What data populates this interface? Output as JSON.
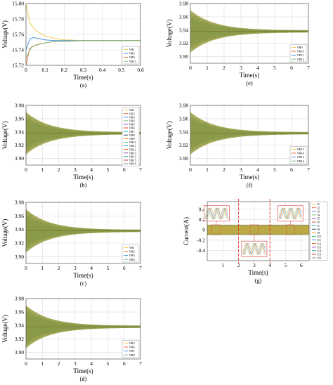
{
  "chart_data": [
    {
      "id": "a",
      "type": "line",
      "caption": "(a)",
      "xlabel": "Time(s)",
      "ylabel": "Voltage(V)",
      "xlim": [
        0,
        0.6
      ],
      "ylim": [
        15.72,
        15.8
      ],
      "xticks": [
        "0",
        "0.1",
        "0.2",
        "0.3",
        "0.4",
        "0.5",
        "0.6"
      ],
      "yticks": [
        "15.72",
        "15.74",
        "15.76",
        "15.78",
        "15.80"
      ],
      "grid": true,
      "legend_position": "bottom-right",
      "envelope": null,
      "series": [
        {
          "name": "VB1",
          "color": "#f2c94c",
          "x": [
            0,
            0.02,
            0.05,
            0.1,
            0.15,
            0.2,
            0.3,
            0.4,
            0.6
          ],
          "y": [
            15.8,
            15.775,
            15.765,
            15.758,
            15.755,
            15.753,
            15.752,
            15.752,
            15.752
          ]
        },
        {
          "name": "VB5",
          "color": "#4a90d9",
          "x": [
            0,
            0.02,
            0.04,
            0.06,
            0.1,
            0.15,
            0.2,
            0.3,
            0.6
          ],
          "y": [
            15.74,
            15.754,
            15.756,
            15.755,
            15.753,
            15.752,
            15.752,
            15.752,
            15.752
          ]
        },
        {
          "name": "VB9",
          "color": "#e8743b",
          "x": [
            0,
            0.02,
            0.05,
            0.1,
            0.15,
            0.2,
            0.3,
            0.6
          ],
          "y": [
            15.72,
            15.742,
            15.746,
            15.749,
            15.751,
            15.751,
            15.752,
            15.752
          ]
        },
        {
          "name": "VB13",
          "color": "#7fbf7f",
          "x": [
            0,
            0.03,
            0.06,
            0.1,
            0.15,
            0.2,
            0.3,
            0.6
          ],
          "y": [
            15.73,
            15.744,
            15.747,
            15.749,
            15.751,
            15.751,
            15.752,
            15.752
          ]
        }
      ]
    },
    {
      "id": "b",
      "type": "line",
      "caption": "(b)",
      "xlabel": "Time(s)",
      "ylabel": "Voltage(V)",
      "xlim": [
        0,
        7
      ],
      "ylim": [
        3.89,
        3.98
      ],
      "xticks": [
        "0",
        "1",
        "2",
        "3",
        "4",
        "5",
        "6",
        "7"
      ],
      "yticks": [
        "3.90",
        "3.92",
        "3.94",
        "3.96",
        "3.98"
      ],
      "grid": true,
      "legend_position": "right",
      "envelope": {
        "center": 3.938,
        "amp_start": 0.032,
        "amp_end": 0.0015,
        "decay": 0.7,
        "color": "#b5aa52"
      },
      "series": [
        {
          "name": "VB1",
          "color": "#f2c94c"
        },
        {
          "name": "VB2",
          "color": "#e8743b"
        },
        {
          "name": "VB3",
          "color": "#4a90d9"
        },
        {
          "name": "VB4",
          "color": "#7fbf7f"
        },
        {
          "name": "VB5",
          "color": "#9b59b6"
        },
        {
          "name": "VB6",
          "color": "#e74c3c"
        },
        {
          "name": "VB7",
          "color": "#1abc9c"
        },
        {
          "name": "VB8",
          "color": "#34495e"
        },
        {
          "name": "VB9",
          "color": "#f39c12"
        },
        {
          "name": "VB10",
          "color": "#2ecc71"
        },
        {
          "name": "VB11",
          "color": "#3498db"
        },
        {
          "name": "VB12",
          "color": "#d35400"
        },
        {
          "name": "VB13",
          "color": "#8e44ad"
        },
        {
          "name": "VB14",
          "color": "#16a085"
        },
        {
          "name": "VB15",
          "color": "#c0392b"
        },
        {
          "name": "VB16",
          "color": "#7f8c8d"
        }
      ]
    },
    {
      "id": "c",
      "type": "line",
      "caption": "(c)",
      "xlabel": "Time(s)",
      "ylabel": "Voltage(V)",
      "xlim": [
        0,
        7
      ],
      "ylim": [
        3.89,
        3.98
      ],
      "xticks": [
        "0",
        "1",
        "2",
        "3",
        "4",
        "5",
        "6",
        "7"
      ],
      "yticks": [
        "3.90",
        "3.92",
        "3.94",
        "3.96",
        "3.98"
      ],
      "grid": true,
      "legend_position": "bottom-right",
      "envelope": {
        "center": 3.938,
        "amp_start": 0.032,
        "amp_end": 0.0015,
        "decay": 0.7,
        "color": "#b5aa52"
      },
      "series": [
        {
          "name": "VB1",
          "color": "#f2c94c"
        },
        {
          "name": "VB2",
          "color": "#e8743b"
        },
        {
          "name": "VB3",
          "color": "#4a90d9"
        },
        {
          "name": "VB4",
          "color": "#7fbf7f"
        }
      ]
    },
    {
      "id": "d",
      "type": "line",
      "caption": "(d)",
      "xlabel": "Time(s)",
      "ylabel": "Voltage(V)",
      "xlim": [
        0,
        7
      ],
      "ylim": [
        3.89,
        3.98
      ],
      "xticks": [
        "0",
        "1",
        "2",
        "3",
        "4",
        "5",
        "6",
        "7"
      ],
      "yticks": [
        "3.90",
        "3.92",
        "3.94",
        "3.96",
        "3.98"
      ],
      "grid": true,
      "legend_position": "bottom-right",
      "envelope": {
        "center": 3.938,
        "amp_start": 0.032,
        "amp_end": 0.0015,
        "decay": 0.7,
        "color": "#b5aa52"
      },
      "series": [
        {
          "name": "VB5",
          "color": "#f2c94c"
        },
        {
          "name": "VB6",
          "color": "#e8743b"
        },
        {
          "name": "VB7",
          "color": "#4a90d9"
        },
        {
          "name": "VB8",
          "color": "#7fbf7f"
        }
      ]
    },
    {
      "id": "e",
      "type": "line",
      "caption": "(e)",
      "xlabel": "Time(s)",
      "ylabel": "Voltage(V)",
      "xlim": [
        0,
        7
      ],
      "ylim": [
        3.89,
        3.98
      ],
      "xticks": [
        "0",
        "1",
        "2",
        "3",
        "4",
        "5",
        "6",
        "7"
      ],
      "yticks": [
        "3.90",
        "3.92",
        "3.94",
        "3.96",
        "3.98"
      ],
      "grid": true,
      "legend_position": "bottom-right",
      "envelope": {
        "center": 3.938,
        "amp_start": 0.032,
        "amp_end": 0.0015,
        "decay": 0.7,
        "color": "#b5aa52"
      },
      "series": [
        {
          "name": "VB9",
          "color": "#f2c94c"
        },
        {
          "name": "VB10",
          "color": "#e8743b"
        },
        {
          "name": "VB11",
          "color": "#4a90d9"
        },
        {
          "name": "VB12",
          "color": "#7fbf7f"
        }
      ]
    },
    {
      "id": "f",
      "type": "line",
      "caption": "(f)",
      "xlabel": "Time(s)",
      "ylabel": "Voltage(V)",
      "xlim": [
        0,
        7
      ],
      "ylim": [
        3.89,
        3.98
      ],
      "xticks": [
        "0",
        "1",
        "2",
        "3",
        "4",
        "5",
        "6",
        "7"
      ],
      "yticks": [
        "3.90",
        "3.92",
        "3.94",
        "3.96",
        "3.98"
      ],
      "grid": true,
      "legend_position": "bottom-right",
      "envelope": {
        "center": 3.938,
        "amp_start": 0.032,
        "amp_end": 0.0015,
        "decay": 0.7,
        "color": "#b5aa52"
      },
      "series": [
        {
          "name": "VB13",
          "color": "#f2c94c"
        },
        {
          "name": "VB14",
          "color": "#e8743b"
        },
        {
          "name": "VB15",
          "color": "#4a90d9"
        },
        {
          "name": "VB16",
          "color": "#7fbf7f"
        }
      ]
    },
    {
      "id": "g",
      "type": "line",
      "caption": "(g)",
      "xlabel": "Time(s)",
      "ylabel": "Current(A)",
      "xlim": [
        0,
        6.5
      ],
      "ylim": [
        -0.6,
        0.55
      ],
      "xticks": [
        "1",
        "2",
        "3",
        "4",
        "5",
        "6"
      ],
      "yticks": [
        "-0.4",
        "-0.2",
        "0",
        "0.2",
        "0.4"
      ],
      "grid": true,
      "legend_position": "right",
      "band": {
        "lo": -0.1,
        "hi": 0.1,
        "color": "#8c8a55"
      },
      "switch_lines": [
        2,
        4
      ],
      "series": [
        {
          "name": "I1",
          "color": "#f2c94c"
        },
        {
          "name": "I2",
          "color": "#e8743b"
        },
        {
          "name": "I3",
          "color": "#4a90d9"
        },
        {
          "name": "I4",
          "color": "#7fbf7f"
        },
        {
          "name": "I5",
          "color": "#9b59b6"
        },
        {
          "name": "I6",
          "color": "#e74c3c"
        },
        {
          "name": "I7",
          "color": "#1abc9c"
        },
        {
          "name": "I8",
          "color": "#34495e"
        },
        {
          "name": "I9",
          "color": "#f39c12"
        },
        {
          "name": "I10",
          "color": "#2ecc71"
        },
        {
          "name": "I11",
          "color": "#3498db"
        },
        {
          "name": "I12",
          "color": "#d35400"
        },
        {
          "name": "I13",
          "color": "#8e44ad"
        },
        {
          "name": "I14",
          "color": "#16a085"
        },
        {
          "name": "I15",
          "color": "#c0392b"
        },
        {
          "name": "I16",
          "color": "#7f8c8d"
        }
      ]
    }
  ]
}
